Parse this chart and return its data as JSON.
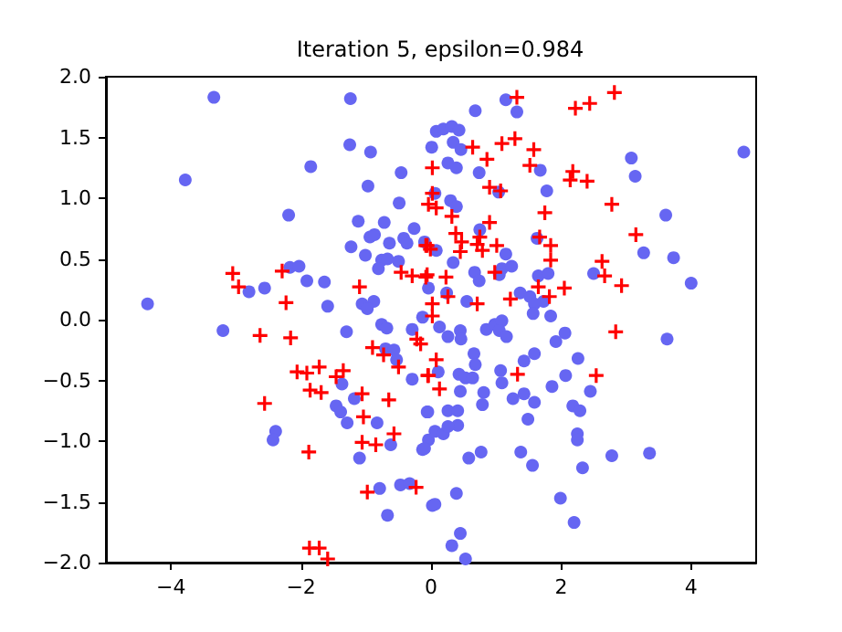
{
  "chart_data": {
    "type": "scatter",
    "title": "Iteration 5, epsilon=0.984",
    "xlim": [
      -5,
      5
    ],
    "xticks": [
      {
        "value": -4,
        "label": "−4"
      },
      {
        "value": -2,
        "label": "−2"
      },
      0,
      2,
      4
    ],
    "ylim": [
      -2,
      2
    ],
    "yticks": [
      {
        "value": -2,
        "label": "−2.0"
      },
      {
        "value": -1.5,
        "label": "−1.5"
      },
      {
        "value": -1,
        "label": "−1.0"
      },
      {
        "value": -0.5,
        "label": "−0.5"
      },
      {
        "value": 0,
        "label": "0.0"
      },
      {
        "value": 0.5,
        "label": "0.5"
      },
      {
        "value": 1,
        "label": "1.0"
      },
      {
        "value": 1.5,
        "label": "1.5"
      },
      {
        "value": 2,
        "label": "2.0"
      }
    ],
    "grid": false,
    "series": [
      {
        "color": "#6666f2",
        "marker": "circle",
        "x": [
          -3.34,
          -1.24,
          -1.25,
          -0.93,
          -1.85,
          -3.78,
          -0.97,
          -0.46,
          -0.49,
          -2.19,
          -1.12,
          -0.72,
          -0.94,
          -0.87,
          -0.64,
          -0.42,
          -0.26,
          -0.37,
          -1.23,
          -1.01,
          -0.76,
          -0.67,
          -0.81,
          -0.5,
          -2.17,
          -2.03,
          -1.91,
          -1.64,
          -2.8,
          -2.56,
          -4.36,
          -1.59,
          -1.06,
          -0.88,
          -0.98,
          1.15,
          1.32,
          0.68,
          4.81,
          0.08,
          0.19,
          0.32,
          0.43,
          0.01,
          0.34,
          0.46,
          0.26,
          0.39,
          0.74,
          1.68,
          3.08,
          3.14,
          1.78,
          1.04,
          0.06,
          0.3,
          0.39,
          3.61,
          0.75,
          -0.1,
          0.08,
          1.15,
          1.63,
          0.34,
          3.27,
          3.73,
          0.67,
          0.74,
          1.09,
          1.24,
          1.05,
          1.65,
          1.8,
          2.5,
          4.0,
          -0.04,
          0.24,
          0.55,
          1.37,
          1.52,
          1.73,
          1.59,
          -3.2,
          -1.3,
          -0.76,
          -0.68,
          -0.29,
          -0.7,
          -0.57,
          -0.53,
          -0.29,
          -1.37,
          -1.18,
          -1.46,
          -1.39,
          -1.29,
          -0.83,
          -0.05,
          -2.39,
          -2.43,
          -0.62,
          -0.13,
          -0.04,
          -1.1,
          -0.79,
          -0.47,
          -0.33,
          0.02,
          -0.67,
          -0.13,
          1.84,
          1.57,
          0.13,
          0.45,
          0.46,
          0.26,
          0.85,
          0.98,
          1.09,
          1.05,
          1.16,
          2.06,
          1.92,
          3.63,
          0.66,
          0.68,
          0.43,
          0.11,
          1.59,
          1.43,
          1.07,
          1.09,
          2.26,
          2.07,
          1.86,
          2.45,
          0.53,
          0.64,
          0.45,
          0.81,
          0.79,
          1.26,
          1.43,
          1.59,
          1.49,
          2.18,
          2.29,
          -0.06,
          0.26,
          0.41,
          0.41,
          0.06,
          0.19,
          0.26,
          -0.1,
          0.77,
          0.58,
          1.38,
          1.56,
          2.25,
          2.25,
          2.33,
          2.78,
          3.36,
          0.39,
          0.06,
          1.99,
          2.2,
          0.45,
          0.32,
          0.53
        ],
        "values": [
          1.83,
          1.82,
          1.44,
          1.38,
          1.26,
          1.15,
          1.1,
          1.21,
          0.96,
          0.86,
          0.81,
          0.8,
          0.68,
          0.7,
          0.63,
          0.67,
          0.75,
          0.63,
          0.6,
          0.53,
          0.49,
          0.5,
          0.42,
          0.48,
          0.43,
          0.44,
          0.32,
          0.31,
          0.23,
          0.26,
          0.13,
          0.11,
          0.13,
          0.15,
          0.09,
          1.81,
          1.71,
          1.72,
          1.38,
          1.55,
          1.57,
          1.59,
          1.56,
          1.42,
          1.46,
          1.4,
          1.29,
          1.25,
          1.21,
          1.23,
          1.33,
          1.18,
          1.06,
          1.05,
          1.04,
          0.98,
          0.93,
          0.86,
          0.74,
          0.64,
          0.57,
          0.54,
          0.67,
          0.47,
          0.55,
          0.51,
          0.39,
          0.32,
          0.42,
          0.44,
          0.37,
          0.36,
          0.38,
          0.38,
          0.3,
          0.26,
          0.22,
          0.15,
          0.22,
          0.19,
          0.15,
          0.13,
          -0.09,
          -0.1,
          -0.04,
          -0.07,
          -0.08,
          -0.24,
          -0.25,
          -0.33,
          -0.49,
          -0.53,
          -0.65,
          -0.71,
          -0.76,
          -0.85,
          -0.85,
          -0.76,
          -0.92,
          -0.99,
          -1.03,
          -1.07,
          -0.99,
          -1.14,
          -1.39,
          -1.36,
          -1.35,
          -1.53,
          -1.61,
          0.02,
          0.03,
          0.05,
          -0.06,
          -0.09,
          -0.16,
          -0.14,
          -0.08,
          -0.04,
          -0.01,
          -0.09,
          -0.14,
          -0.11,
          -0.18,
          -0.16,
          -0.28,
          -0.37,
          -0.45,
          -0.43,
          -0.28,
          -0.34,
          -0.42,
          -0.52,
          -0.32,
          -0.46,
          -0.55,
          -0.59,
          -0.48,
          -0.48,
          -0.59,
          -0.6,
          -0.7,
          -0.65,
          -0.61,
          -0.68,
          -0.82,
          -0.71,
          -0.75,
          -0.76,
          -0.75,
          -0.75,
          -0.87,
          -0.92,
          -0.94,
          -0.88,
          -1.06,
          -1.09,
          -1.14,
          -1.09,
          -1.2,
          -0.94,
          -0.99,
          -1.22,
          -1.12,
          -1.1,
          -1.43,
          -1.52,
          -1.47,
          -1.67,
          -1.76,
          -1.86,
          -1.97
        ]
      },
      {
        "color": "#ff0000",
        "marker": "cross",
        "x": [
          -3.05,
          -2.96,
          -2.29,
          -2.23,
          -1.1,
          -0.46,
          -0.29,
          -0.06,
          -0.08,
          1.32,
          2.22,
          2.44,
          2.82,
          0.64,
          0.86,
          1.09,
          1.29,
          1.58,
          1.52,
          0.02,
          2.18,
          2.14,
          2.4,
          0.9,
          1.07,
          0.02,
          -0.04,
          0.08,
          2.78,
          1.75,
          0.32,
          0.9,
          0.38,
          0.75,
          0.47,
          0.71,
          1.67,
          1.84,
          3.15,
          1.01,
          -0.06,
          -0.01,
          0.79,
          0.45,
          1.84,
          2.63,
          0.98,
          -0.08,
          0.23,
          2.67,
          2.93,
          1.65,
          2.05,
          0.26,
          0.02,
          0.71,
          1.22,
          1.82,
          -2.63,
          -2.16,
          -0.9,
          -0.73,
          -0.22,
          -0.16,
          -0.5,
          -2.06,
          -1.91,
          -1.72,
          -1.46,
          -1.35,
          -0.05,
          -1.86,
          -1.69,
          -2.56,
          -1.06,
          -0.65,
          -1.04,
          -1.06,
          -0.85,
          -0.57,
          -1.88,
          -0.98,
          -0.23,
          -1.87,
          -1.72,
          -1.59,
          2.84,
          0.08,
          -0.04,
          0.13,
          1.33,
          2.54,
          0.02
        ],
        "values": [
          0.38,
          0.27,
          0.4,
          0.14,
          0.27,
          0.39,
          0.36,
          0.37,
          0.61,
          1.83,
          1.74,
          1.78,
          1.87,
          1.42,
          1.32,
          1.45,
          1.49,
          1.4,
          1.27,
          1.25,
          1.22,
          1.15,
          1.14,
          1.09,
          1.06,
          1.04,
          0.95,
          0.92,
          0.95,
          0.88,
          0.85,
          0.8,
          0.71,
          0.68,
          0.64,
          0.62,
          0.68,
          0.61,
          0.7,
          0.61,
          0.61,
          0.58,
          0.57,
          0.56,
          0.49,
          0.48,
          0.39,
          0.35,
          0.35,
          0.36,
          0.28,
          0.27,
          0.26,
          0.19,
          0.13,
          0.13,
          0.17,
          0.19,
          -0.13,
          -0.15,
          -0.23,
          -0.29,
          -0.16,
          -0.2,
          -0.39,
          -0.43,
          -0.44,
          -0.39,
          -0.47,
          -0.42,
          -0.46,
          -0.58,
          -0.6,
          -0.69,
          -0.61,
          -0.66,
          -0.8,
          -1.01,
          -1.03,
          -0.94,
          -1.09,
          -1.42,
          -1.38,
          -1.88,
          -1.88,
          -1.97,
          -0.1,
          -0.33,
          -0.46,
          -0.57,
          -0.45,
          -0.46,
          0.03
        ]
      }
    ]
  }
}
